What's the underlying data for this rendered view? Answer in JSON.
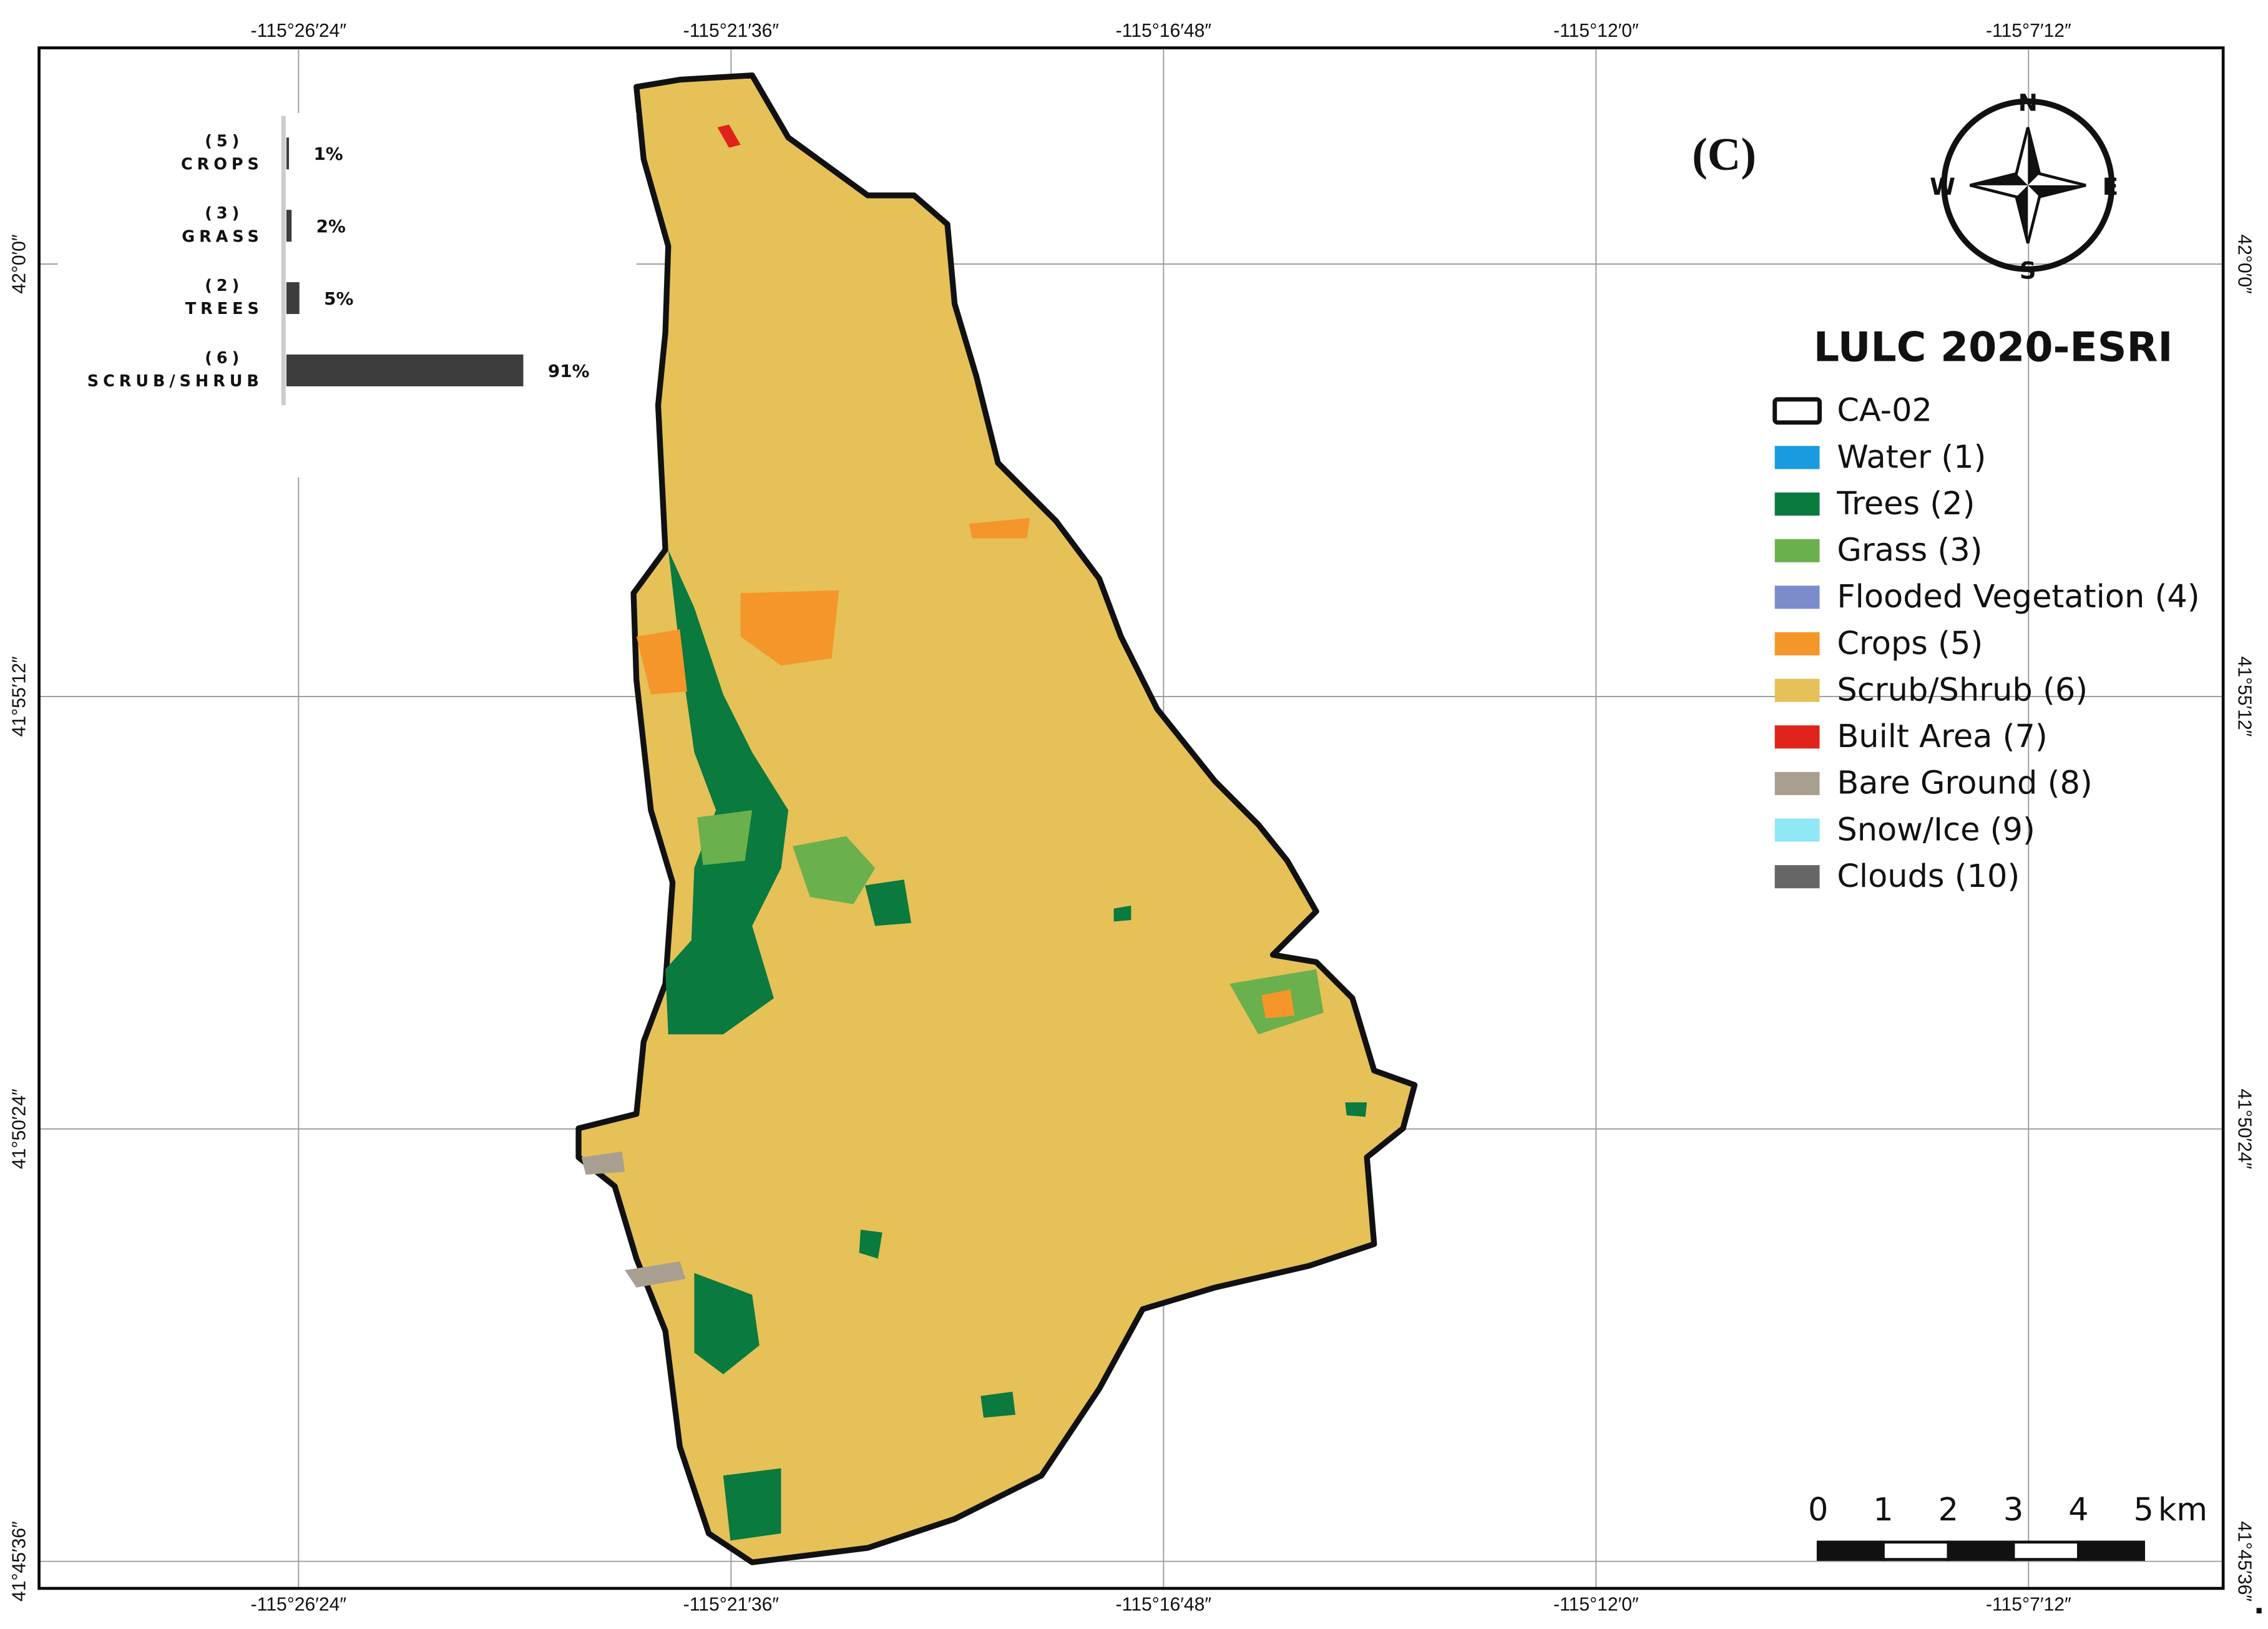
{
  "map": {
    "panel_label": "(C)",
    "xlim": [
      -115.488,
      -115.084
    ],
    "ylim": [
      41.755,
      42.04
    ],
    "xticks": [
      {
        "value": -115.44,
        "label": "-115°26′24″"
      },
      {
        "value": -115.36,
        "label": "-115°21′36″"
      },
      {
        "value": -115.28,
        "label": "-115°16′48″"
      },
      {
        "value": -115.2,
        "label": "-115°12′0″"
      },
      {
        "value": -115.12,
        "label": "-115°7′12″"
      }
    ],
    "yticks": [
      {
        "value": 42.0,
        "label": "42°0′0″"
      },
      {
        "value": 41.92,
        "label": "41°55′12″"
      },
      {
        "value": 41.84,
        "label": "41°50′24″"
      },
      {
        "value": 41.76,
        "label": "41°45′36″"
      }
    ],
    "grid": true,
    "compass": {
      "north": "N",
      "east": "E",
      "south": "S",
      "west": "W"
    },
    "scale_bar": {
      "ticks": [
        0,
        1,
        2,
        3,
        4,
        5
      ],
      "unit": "km"
    },
    "trailing_mark": "."
  },
  "legend": {
    "title": "LULC 2020-ESRI",
    "items": [
      {
        "label": "CA-02",
        "color": "#ffffff",
        "outline": true
      },
      {
        "label": "Water (1)",
        "color": "#1a9be0"
      },
      {
        "label": "Trees (2)",
        "color": "#0a7a3e"
      },
      {
        "label": "Grass (3)",
        "color": "#6ab04c"
      },
      {
        "label": "Flooded Vegetation (4)",
        "color": "#7b8ccc"
      },
      {
        "label": "Crops (5)",
        "color": "#f5962a"
      },
      {
        "label": "Scrub/Shrub (6)",
        "color": "#e5c158"
      },
      {
        "label": "Built Area (7)",
        "color": "#e0231a"
      },
      {
        "label": "Bare Ground (8)",
        "color": "#a89f91"
      },
      {
        "label": "Snow/Ice (9)",
        "color": "#8ee8f5"
      },
      {
        "label": "Clouds (10)",
        "color": "#666666"
      }
    ]
  },
  "chart_data": {
    "type": "bar",
    "orientation": "horizontal",
    "category_codes": [
      "(5)",
      "(3)",
      "(2)",
      "(6)"
    ],
    "categories": [
      "CROPS",
      "GRASS",
      "TREES",
      "SCRUB/SHRUB"
    ],
    "values": [
      1,
      2,
      5,
      91
    ],
    "value_labels": [
      "1%",
      "2%",
      "5%",
      "91%"
    ],
    "color": "#3d3d3d"
  }
}
